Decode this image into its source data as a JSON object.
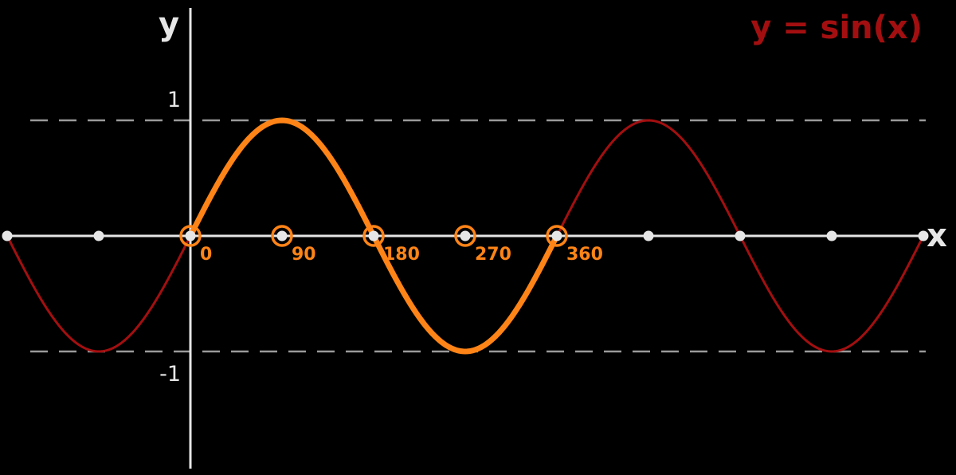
{
  "chart_data": {
    "type": "line",
    "title": "y = sin(x)",
    "xlabel": "x",
    "ylabel": "y",
    "xlim": [
      -180,
      540
    ],
    "ylim": [
      -1,
      1
    ],
    "y_ticks": [
      {
        "value": 1,
        "label": "1"
      },
      {
        "value": -1,
        "label": "-1"
      }
    ],
    "x_ticks": [
      {
        "value": 0,
        "label": "0"
      },
      {
        "value": 90,
        "label": "90"
      },
      {
        "value": 180,
        "label": "180"
      },
      {
        "value": 270,
        "label": "270"
      },
      {
        "value": 360,
        "label": "360"
      }
    ],
    "axis_points": [
      -180,
      -90,
      0,
      90,
      180,
      270,
      360,
      450,
      540,
      630,
      720
    ],
    "reference_lines": [
      1,
      -1
    ],
    "series": [
      {
        "function": "sin",
        "x_range": [
          -180,
          720
        ],
        "color": "#a30f10",
        "style": "thin"
      },
      {
        "function": "sin",
        "x_range": [
          0,
          360
        ],
        "color": "#ff8417",
        "style": "bold"
      }
    ],
    "highlighted_points": [
      0,
      90,
      180,
      270,
      360
    ],
    "grid": false,
    "legend": "none"
  },
  "colors": {
    "background": "#000000",
    "axis": "#e6e6e6",
    "highlight": "#ff8417",
    "curve": "#a30f10",
    "reference": "#9a9a9a"
  }
}
